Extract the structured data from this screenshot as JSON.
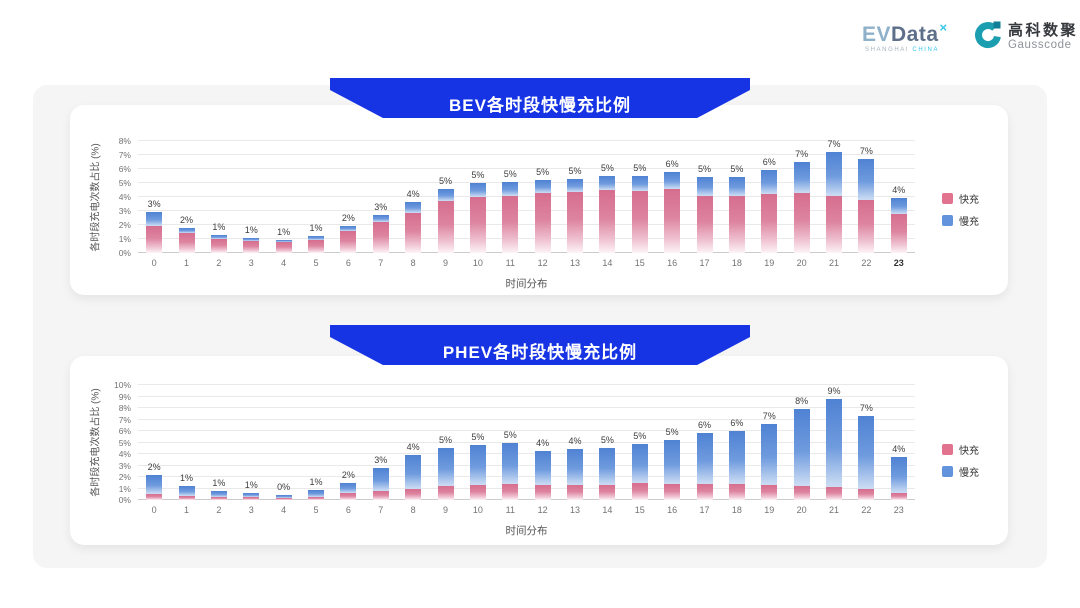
{
  "header": {
    "evdata_logo": {
      "text_ev": "EV",
      "text_data": "Data",
      "sup": "×",
      "sub1": "SHANGHAI",
      "sub2": "CHINA"
    },
    "gausscode_logo": {
      "title": "高科数聚",
      "subtitle": "Gausscode"
    }
  },
  "colors": {
    "banner_blue": "#1634e4",
    "fast_pink": "#e2738f",
    "slow_blue": "#6493de",
    "panel_bg": "#f5f5f6",
    "card_bg": "#ffffff",
    "gauss_teal": "#1b9fb0",
    "gauss_teal_dark": "#0e7f97",
    "evdata_cyan": "#38c6e9"
  },
  "chart_data": [
    {
      "type": "bar",
      "stacked": true,
      "title": "BEV各时段快慢充比例",
      "xlabel": "时间分布",
      "ylabel": "各时段充电次数占比 (%)",
      "ylim": [
        0,
        8
      ],
      "yticks": [
        "0%",
        "1%",
        "2%",
        "3%",
        "4%",
        "5%",
        "6%",
        "7%",
        "8%"
      ],
      "grid": true,
      "legend_position": "right",
      "categories": [
        "0",
        "1",
        "2",
        "3",
        "4",
        "5",
        "6",
        "7",
        "8",
        "9",
        "10",
        "11",
        "12",
        "13",
        "14",
        "15",
        "16",
        "17",
        "18",
        "19",
        "20",
        "21",
        "22",
        "23"
      ],
      "bold_xtick": "23",
      "series": [
        {
          "name": "快充",
          "values": [
            1.9,
            1.4,
            1.0,
            0.85,
            0.8,
            0.95,
            1.55,
            2.2,
            2.85,
            3.7,
            4.0,
            4.05,
            4.3,
            4.35,
            4.5,
            4.4,
            4.6,
            4.1,
            4.1,
            4.2,
            4.3,
            4.1,
            3.8,
            2.8
          ]
        },
        {
          "name": "慢充",
          "values": [
            1.0,
            0.4,
            0.3,
            0.25,
            0.15,
            0.25,
            0.35,
            0.5,
            0.8,
            0.9,
            1.0,
            1.05,
            0.9,
            0.95,
            1.0,
            1.1,
            1.2,
            1.3,
            1.35,
            1.7,
            2.2,
            3.1,
            2.9,
            1.1
          ]
        }
      ],
      "bar_labels": [
        "3%",
        "2%",
        "1%",
        "1%",
        "1%",
        "1%",
        "2%",
        "3%",
        "4%",
        "5%",
        "5%",
        "5%",
        "5%",
        "5%",
        "5%",
        "5%",
        "6%",
        "5%",
        "5%",
        "6%",
        "7%",
        "7%",
        "7%",
        "4%"
      ]
    },
    {
      "type": "bar",
      "stacked": true,
      "title": "PHEV各时段快慢充比例",
      "xlabel": "时间分布",
      "ylabel": "各时段充电次数占比 (%)",
      "ylim": [
        0,
        10
      ],
      "yticks": [
        "0%",
        "1%",
        "2%",
        "3%",
        "4%",
        "5%",
        "6%",
        "7%",
        "8%",
        "9%",
        "10%"
      ],
      "grid": true,
      "legend_position": "right",
      "categories": [
        "0",
        "1",
        "2",
        "3",
        "4",
        "5",
        "6",
        "7",
        "8",
        "9",
        "10",
        "11",
        "12",
        "13",
        "14",
        "15",
        "16",
        "17",
        "18",
        "19",
        "20",
        "21",
        "22",
        "23"
      ],
      "bold_xtick": null,
      "series": [
        {
          "name": "快充",
          "values": [
            0.5,
            0.35,
            0.3,
            0.25,
            0.2,
            0.3,
            0.6,
            0.75,
            1.0,
            1.2,
            1.3,
            1.4,
            1.3,
            1.3,
            1.3,
            1.5,
            1.4,
            1.4,
            1.4,
            1.3,
            1.2,
            1.1,
            1.0,
            0.6
          ]
        },
        {
          "name": "慢充",
          "values": [
            1.7,
            0.85,
            0.5,
            0.35,
            0.25,
            0.55,
            0.9,
            2.0,
            2.9,
            3.3,
            3.5,
            3.6,
            3.0,
            3.1,
            3.2,
            3.4,
            3.8,
            4.4,
            4.6,
            5.3,
            6.7,
            7.7,
            6.3,
            3.1
          ]
        }
      ],
      "bar_labels": [
        "2%",
        "1%",
        "1%",
        "1%",
        "0%",
        "1%",
        "2%",
        "3%",
        "4%",
        "5%",
        "5%",
        "5%",
        "4%",
        "4%",
        "5%",
        "5%",
        "5%",
        "6%",
        "6%",
        "7%",
        "8%",
        "9%",
        "7%",
        "4%"
      ]
    }
  ]
}
